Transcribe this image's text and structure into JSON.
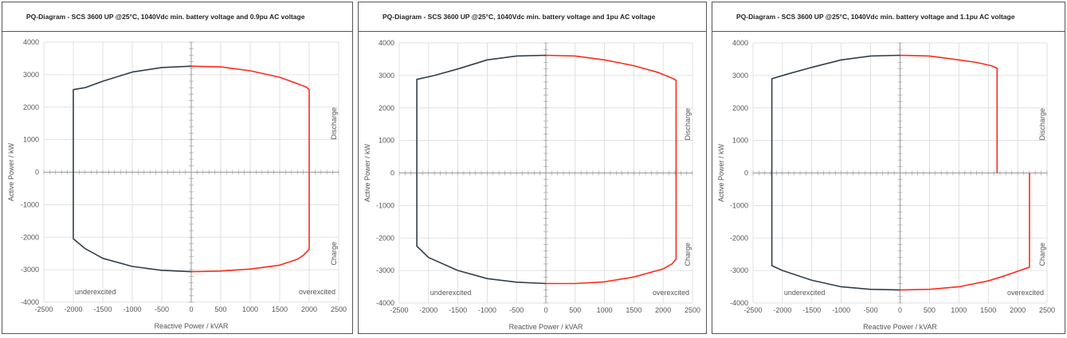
{
  "colors": {
    "underexcited": "#2f3f48",
    "overexcited": "#ff2a1a",
    "grid": "#d9d9d9",
    "axis": "#9a9a9a"
  },
  "chart_data": [
    {
      "type": "line",
      "title": "PQ-Diagram - SCS 3600 UP @25°C, 1040Vdc min. battery voltage  and 0.9pu AC voltage",
      "xlabel": "Reactive Power / kVAR",
      "ylabel": "Active Power / kW",
      "xlim": [
        -2500,
        2500
      ],
      "ylim": [
        -4000,
        4000
      ],
      "xticks": [
        "-2500",
        "-2000",
        "-1500",
        "-1000",
        "-500",
        "0",
        "500",
        "1000",
        "1500",
        "2000",
        "2500"
      ],
      "yticks": [
        "4000",
        "3000",
        "2000",
        "1000",
        "0",
        "-1000",
        "-2000",
        "-3000",
        "-4000"
      ],
      "grid": true,
      "annotations": {
        "discharge": "Discharge",
        "charge": "Charge",
        "under": "underexcited",
        "over": "overexcited"
      },
      "series": [
        {
          "x": [
            0,
            -500,
            -1000,
            -1500,
            -1800,
            -2000,
            -2000,
            -2000,
            -1800,
            -1500,
            -1000,
            -500,
            0
          ],
          "y": [
            3260,
            3220,
            3080,
            2800,
            2600,
            2540,
            0,
            -2050,
            -2350,
            -2650,
            -2900,
            -3020,
            -3060
          ]
        },
        {
          "x": [
            0,
            500,
            1000,
            1500,
            1800,
            1950,
            2000,
            2000,
            2000,
            1900,
            1800,
            1500,
            1000,
            500,
            0
          ],
          "y": [
            3260,
            3240,
            3120,
            2920,
            2720,
            2620,
            2540,
            0,
            -2370,
            -2560,
            -2680,
            -2860,
            -2980,
            -3040,
            -3060
          ]
        }
      ]
    },
    {
      "type": "line",
      "title": "PQ-Diagram - SCS 3600 UP @25°C, 1040Vdc min. battery voltage  and 1pu AC voltage",
      "xlabel": "Reactive Power / kVAR",
      "ylabel": "Active Power / kW",
      "xlim": [
        -2500,
        2500
      ],
      "ylim": [
        -4000,
        4000
      ],
      "xticks": [
        "-2500",
        "-2000",
        "-1500",
        "-1000",
        "-500",
        "0",
        "500",
        "1000",
        "1500",
        "2000",
        "2500"
      ],
      "yticks": [
        "4000",
        "3000",
        "2000",
        "1000",
        "0",
        "-1000",
        "-2000",
        "-3000",
        "-4000"
      ],
      "grid": true,
      "annotations": {
        "discharge": "Discharge",
        "charge": "Charge",
        "under": "underexcited",
        "over": "overexcited"
      },
      "series": [
        {
          "x": [
            0,
            -500,
            -1000,
            -1500,
            -1900,
            -2200,
            -2200,
            -2200,
            -2000,
            -1500,
            -1000,
            -500,
            0
          ],
          "y": [
            3620,
            3600,
            3480,
            3200,
            3000,
            2880,
            0,
            -2250,
            -2600,
            -3000,
            -3250,
            -3360,
            -3400
          ]
        },
        {
          "x": [
            0,
            500,
            1000,
            1500,
            1900,
            2150,
            2220,
            2220,
            2220,
            2150,
            2000,
            1500,
            1000,
            500,
            0
          ],
          "y": [
            3620,
            3600,
            3480,
            3300,
            3100,
            2920,
            2850,
            0,
            -2650,
            -2800,
            -2950,
            -3200,
            -3350,
            -3400,
            -3400
          ]
        }
      ]
    },
    {
      "type": "line",
      "title": "PQ-Diagram - SCS 3600 UP @25°C, 1040Vdc min. battery voltage  and 1.1pu AC voltage",
      "xlabel": "Reactive Power / kVAR",
      "ylabel": "Active Power / kW",
      "xlim": [
        -2500,
        2500
      ],
      "ylim": [
        -4000,
        4000
      ],
      "xticks": [
        "-2500",
        "-2000",
        "-1500",
        "-1000",
        "-500",
        "0",
        "500",
        "1000",
        "1500",
        "2000",
        "2500"
      ],
      "yticks": [
        "4000",
        "3000",
        "2000",
        "1000",
        "0",
        "-1000",
        "-2000",
        "-3000",
        "-4000"
      ],
      "grid": true,
      "annotations": {
        "discharge": "Discharge",
        "charge": "Charge",
        "under": "underexcited",
        "over": "overexcited"
      },
      "series": [
        {
          "x": [
            0,
            -500,
            -1000,
            -1500,
            -1900,
            -2180,
            -2180,
            -2180,
            -2000,
            -1500,
            -1000,
            -500,
            0
          ],
          "y": [
            3620,
            3600,
            3480,
            3250,
            3050,
            2900,
            0,
            -2850,
            -3000,
            -3300,
            -3500,
            -3580,
            -3600
          ]
        },
        {
          "x": [
            0,
            500,
            1000,
            1300,
            1550,
            1650,
            1650,
            null,
            2200,
            2200,
            2100,
            1800,
            1500,
            1000,
            500,
            0
          ],
          "y": [
            3620,
            3600,
            3480,
            3400,
            3300,
            3220,
            0,
            null,
            0,
            -2900,
            -2960,
            -3150,
            -3320,
            -3500,
            -3580,
            -3600
          ]
        }
      ]
    }
  ]
}
